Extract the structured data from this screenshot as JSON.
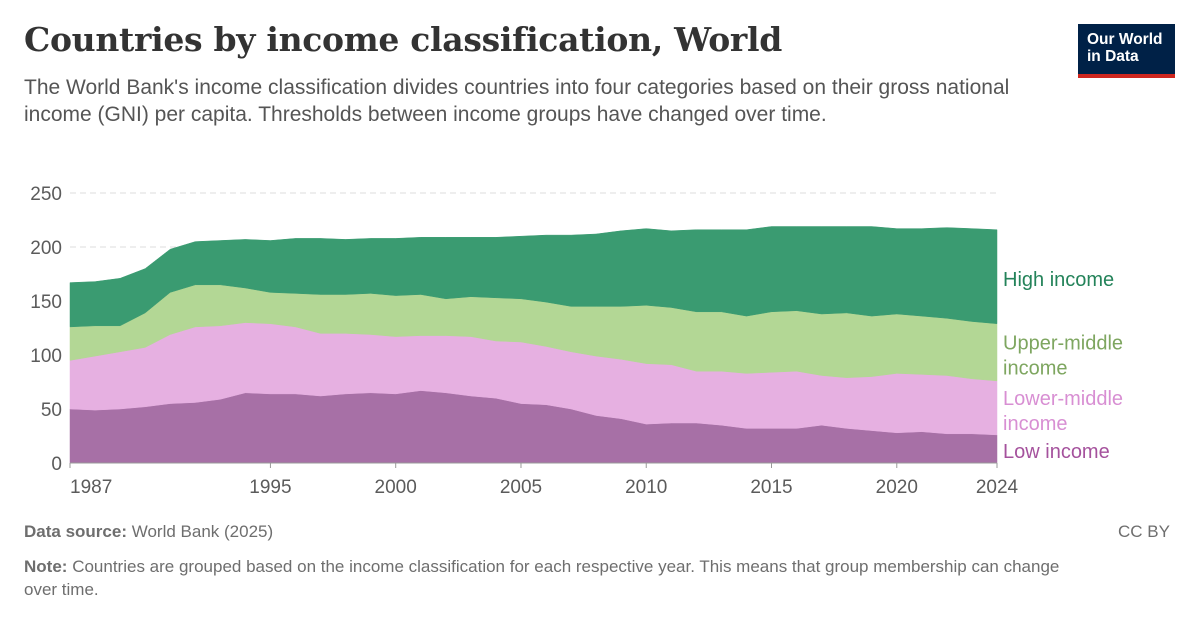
{
  "header": {
    "title": "Countries by income classification, World",
    "subtitle": "The World Bank's income classification divides countries into four categories based on their gross national income (GNI) per capita. Thresholds between income groups have changed over time."
  },
  "logo": {
    "line1": "Our World",
    "line2": "in Data"
  },
  "footer": {
    "source_label": "Data source:",
    "source_text": "World Bank (2025)",
    "license": "CC BY",
    "note_label": "Note:",
    "note_text": "Countries are grouped based on the income classification for each respective year. This means that group membership can change over time."
  },
  "chart_data": {
    "type": "area",
    "stacked": true,
    "ylim": [
      0,
      250
    ],
    "y_ticks": [
      0,
      50,
      100,
      150,
      200,
      250
    ],
    "x_ticks": [
      1987,
      1995,
      2000,
      2005,
      2010,
      2015,
      2020,
      2024
    ],
    "grid": "horizontal dashed",
    "legend_placement": "right, inline labels",
    "x": [
      1987,
      1988,
      1989,
      1990,
      1991,
      1992,
      1993,
      1994,
      1995,
      1996,
      1997,
      1998,
      1999,
      2000,
      2001,
      2002,
      2003,
      2004,
      2005,
      2006,
      2007,
      2008,
      2009,
      2010,
      2011,
      2012,
      2013,
      2014,
      2015,
      2016,
      2017,
      2018,
      2019,
      2020,
      2021,
      2022,
      2023,
      2024
    ],
    "series": [
      {
        "name": "Low income",
        "color": "#a770a6",
        "label_color": "#a5529d",
        "values": [
          50,
          49,
          50,
          52,
          55,
          56,
          59,
          65,
          64,
          64,
          62,
          64,
          65,
          64,
          67,
          65,
          62,
          60,
          55,
          54,
          50,
          44,
          41,
          36,
          37,
          37,
          35,
          32,
          32,
          32,
          35,
          32,
          30,
          28,
          29,
          27,
          27,
          26
        ]
      },
      {
        "name": "Lower-middle income",
        "color": "#e6b0e1",
        "label_color": "#d88fd3",
        "values": [
          45,
          50,
          53,
          55,
          64,
          70,
          68,
          65,
          65,
          62,
          58,
          56,
          54,
          53,
          51,
          53,
          55,
          53,
          57,
          54,
          53,
          55,
          55,
          56,
          54,
          48,
          50,
          51,
          52,
          53,
          46,
          47,
          50,
          55,
          53,
          54,
          51,
          50
        ]
      },
      {
        "name": "Upper-middle income",
        "color": "#b3d795",
        "label_color": "#7ea660",
        "values": [
          31,
          28,
          24,
          32,
          39,
          39,
          38,
          32,
          29,
          31,
          36,
          36,
          38,
          38,
          38,
          34,
          37,
          40,
          40,
          41,
          42,
          46,
          49,
          54,
          53,
          55,
          55,
          53,
          56,
          56,
          57,
          60,
          56,
          55,
          54,
          53,
          53,
          53
        ]
      },
      {
        "name": "High income",
        "color": "#3a9b71",
        "label_color": "#24835a",
        "values": [
          41,
          41,
          44,
          41,
          40,
          40,
          41,
          45,
          48,
          51,
          52,
          51,
          51,
          53,
          53,
          57,
          55,
          56,
          58,
          62,
          66,
          67,
          70,
          71,
          71,
          76,
          76,
          80,
          79,
          78,
          81,
          80,
          83,
          79,
          81,
          84,
          86,
          87
        ]
      }
    ],
    "legend_labels": [
      {
        "series": "High income",
        "lines": [
          "High income"
        ]
      },
      {
        "series": "Upper-middle income",
        "lines": [
          "Upper-middle",
          "income"
        ]
      },
      {
        "series": "Lower-middle income",
        "lines": [
          "Lower-middle",
          "income"
        ]
      },
      {
        "series": "Low income",
        "lines": [
          "Low income"
        ]
      }
    ]
  }
}
